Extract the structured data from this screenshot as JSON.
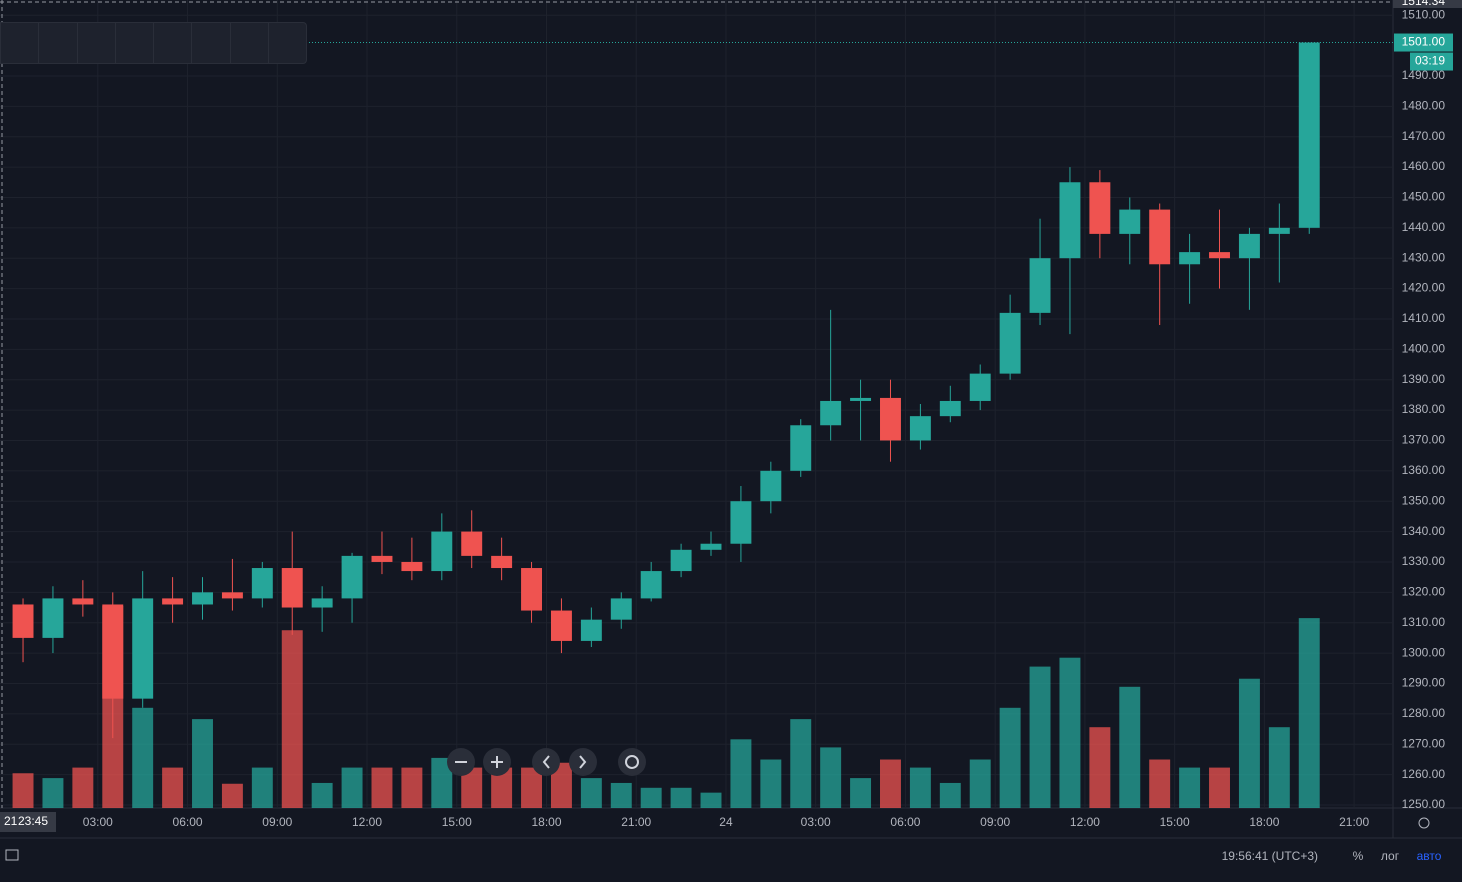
{
  "chart_data": {
    "type": "candlestick",
    "top_label": "1514.34",
    "last_price": "1501.00",
    "countdown": "03:19",
    "crosshair_time": "23:45",
    "date_fragment": "21",
    "clock": "19:56:41 (UTC+3)",
    "scale_buttons": [
      "%",
      "лог",
      "авто"
    ],
    "up_color": "#26a69a",
    "down_color": "#ef5350",
    "grid": true,
    "xlim": [
      -0.27,
      46.3
    ],
    "xticks": [
      {
        "value": 3,
        "label": "03:00"
      },
      {
        "value": 6,
        "label": "06:00"
      },
      {
        "value": 9,
        "label": "09:00"
      },
      {
        "value": 12,
        "label": "12:00"
      },
      {
        "value": 15,
        "label": "15:00"
      },
      {
        "value": 18,
        "label": "18:00"
      },
      {
        "value": 21,
        "label": "21:00"
      },
      24,
      {
        "value": 27,
        "label": "03:00"
      },
      {
        "value": 30,
        "label": "06:00"
      },
      {
        "value": 33,
        "label": "09:00"
      },
      {
        "value": 36,
        "label": "12:00"
      },
      {
        "value": 39,
        "label": "15:00"
      },
      {
        "value": 42,
        "label": "18:00"
      },
      {
        "value": 45,
        "label": "21:00"
      }
    ],
    "ylim": [
      1249,
      1515
    ],
    "yticks": [
      {
        "value": 1250,
        "label": "1250.00"
      },
      {
        "value": 1260,
        "label": "1260.00"
      },
      {
        "value": 1270,
        "label": "1270.00"
      },
      {
        "value": 1280,
        "label": "1280.00"
      },
      {
        "value": 1290,
        "label": "1290.00"
      },
      {
        "value": 1300,
        "label": "1300.00"
      },
      {
        "value": 1310,
        "label": "1310.00"
      },
      {
        "value": 1320,
        "label": "1320.00"
      },
      {
        "value": 1330,
        "label": "1330.00"
      },
      {
        "value": 1340,
        "label": "1340.00"
      },
      {
        "value": 1350,
        "label": "1350.00"
      },
      {
        "value": 1360,
        "label": "1360.00"
      },
      {
        "value": 1370,
        "label": "1370.00"
      },
      {
        "value": 1380,
        "label": "1380.00"
      },
      {
        "value": 1390,
        "label": "1390.00"
      },
      {
        "value": 1400,
        "label": "1400.00"
      },
      {
        "value": 1410,
        "label": "1410.00"
      },
      {
        "value": 1420,
        "label": "1420.00"
      },
      {
        "value": 1430,
        "label": "1430.00"
      },
      {
        "value": 1440,
        "label": "1440.00"
      },
      {
        "value": 1450,
        "label": "1450.00"
      },
      {
        "value": 1460,
        "label": "1460.00"
      },
      {
        "value": 1470,
        "label": "1470.00"
      },
      {
        "value": 1480,
        "label": "1480.00"
      },
      {
        "value": 1490,
        "label": "1490.00"
      },
      {
        "value": 1510,
        "label": "1510.00"
      }
    ],
    "y2lim": [
      0,
      1000
    ],
    "x": [
      0,
      1,
      2,
      3,
      4,
      5,
      6,
      7,
      8,
      9,
      10,
      11,
      12,
      13,
      14,
      15,
      16,
      17,
      18,
      19,
      20,
      21,
      22,
      23,
      24,
      25,
      26,
      27,
      28,
      29,
      30,
      31,
      32,
      33,
      34,
      35,
      36,
      37,
      38,
      39,
      40,
      41,
      42,
      43
    ],
    "open": [
      1316,
      1305,
      1318,
      1316,
      1285,
      1318,
      1316,
      1320,
      1318,
      1328,
      1315,
      1318,
      1332,
      1330,
      1327,
      1340,
      1332,
      1328,
      1314,
      1304,
      1311,
      1318,
      1327,
      1334,
      1336,
      1350,
      1360,
      1375,
      1383,
      1384,
      1370,
      1378,
      1383,
      1392,
      1412,
      1430,
      1455,
      1438,
      1446,
      1428,
      1432,
      1430,
      1438,
      1440
    ],
    "high": [
      1318,
      1322,
      1324,
      1320,
      1327,
      1325,
      1325,
      1331,
      1330,
      1340,
      1322,
      1333,
      1340,
      1338,
      1346,
      1347,
      1338,
      1330,
      1318,
      1315,
      1320,
      1330,
      1336,
      1340,
      1355,
      1363,
      1377,
      1413,
      1390,
      1390,
      1382,
      1388,
      1395,
      1418,
      1443,
      1460,
      1459,
      1450,
      1448,
      1438,
      1446,
      1440,
      1448,
      1501
    ],
    "low": [
      1297,
      1300,
      1312,
      1272,
      1282,
      1310,
      1311,
      1314,
      1315,
      1306,
      1307,
      1310,
      1326,
      1324,
      1324,
      1328,
      1324,
      1310,
      1300,
      1302,
      1308,
      1317,
      1325,
      1332,
      1330,
      1346,
      1358,
      1370,
      1370,
      1363,
      1367,
      1376,
      1380,
      1390,
      1408,
      1405,
      1430,
      1428,
      1408,
      1415,
      1420,
      1413,
      1422,
      1438
    ],
    "close": [
      1305,
      1318,
      1316,
      1285,
      1318,
      1316,
      1320,
      1318,
      1328,
      1315,
      1318,
      1332,
      1330,
      1327,
      1340,
      1332,
      1328,
      1314,
      1304,
      1311,
      1318,
      1327,
      1334,
      1336,
      1350,
      1360,
      1375,
      1383,
      1384,
      1370,
      1378,
      1383,
      1392,
      1412,
      1430,
      1455,
      1438,
      1446,
      1428,
      1432,
      1430,
      1438,
      1440,
      1501
    ],
    "volume": [
      43,
      37,
      50,
      250,
      124,
      50,
      110,
      30,
      50,
      220,
      31,
      50,
      50,
      50,
      62,
      50,
      50,
      50,
      56,
      37,
      31,
      25,
      25,
      19,
      85,
      60,
      110,
      75,
      37,
      60,
      50,
      31,
      60,
      124,
      175,
      186,
      100,
      150,
      60,
      50,
      50,
      160,
      100,
      235
    ]
  }
}
